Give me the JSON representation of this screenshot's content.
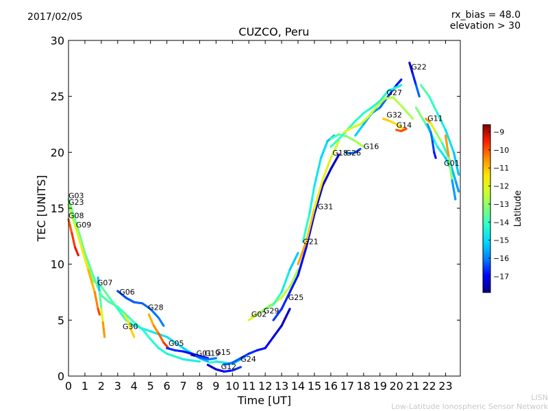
{
  "header": {
    "date": "2017/02/05",
    "title": "CUZCO, Peru",
    "rx_bias": "rx_bias = 48.0",
    "elevation": "elevation > 30"
  },
  "watermark": {
    "line1": "LISN",
    "line2": "Low-Latitude Ionospheric Sensor Network"
  },
  "chart_data": {
    "type": "scatter",
    "title": "CUZCO, Peru",
    "xlabel": "Time [UT]",
    "ylabel": "TEC [UNITS]",
    "xlim": [
      0,
      23.9
    ],
    "ylim": [
      0,
      30
    ],
    "xticks": [
      0,
      1,
      2,
      3,
      4,
      5,
      6,
      7,
      8,
      9,
      10,
      11,
      12,
      13,
      14,
      15,
      16,
      17,
      18,
      19,
      20,
      21,
      22,
      23
    ],
    "yticks": [
      0,
      5,
      10,
      15,
      20,
      25,
      30
    ],
    "colorbar": {
      "label": "Latitude",
      "range": [
        -17.9,
        -8.6
      ],
      "ticks": [
        -9,
        -10,
        -11,
        -12,
        -13,
        -14,
        -15,
        -16,
        -17
      ],
      "colormap": [
        "#00007f",
        "#0000ff",
        "#007fff",
        "#00d6ff",
        "#29ffce",
        "#7dff7a",
        "#ceff29",
        "#ffe500",
        "#ff8c00",
        "#ff2000",
        "#7f0000"
      ]
    },
    "series": [
      {
        "name": "G03",
        "lat_start": -13.5,
        "lat_end": -14.5,
        "points": [
          [
            0.0,
            15.8
          ],
          [
            0.5,
            13.5
          ],
          [
            1.0,
            11.0
          ],
          [
            1.5,
            9.0
          ],
          [
            2.0,
            7.2
          ],
          [
            2.5,
            6.6
          ],
          [
            3.0,
            6.2
          ],
          [
            3.5,
            5.5
          ],
          [
            4.0,
            4.8
          ],
          [
            4.5,
            4.2
          ],
          [
            5.0,
            3.3
          ],
          [
            5.5,
            2.5
          ],
          [
            6.0,
            2.0
          ],
          [
            7.0,
            1.5
          ],
          [
            8.0,
            1.3
          ]
        ]
      },
      {
        "name": "G23",
        "lat_start": -12.5,
        "lat_end": -15.5,
        "points": [
          [
            0.0,
            15.3
          ],
          [
            0.5,
            13.0
          ],
          [
            1.0,
            10.5
          ],
          [
            1.5,
            8.5
          ],
          [
            2.0,
            8.0
          ],
          [
            2.5,
            7.0
          ],
          [
            3.0,
            6.0
          ],
          [
            3.5,
            5.0
          ],
          [
            4.0,
            4.5
          ],
          [
            5.0,
            4.0
          ],
          [
            6.0,
            3.5
          ],
          [
            7.0,
            2.5
          ],
          [
            8.0,
            1.6
          ],
          [
            8.5,
            1.3
          ]
        ]
      },
      {
        "name": "G08",
        "lat_start": -10.2,
        "lat_end": -9.2,
        "points": [
          [
            0.0,
            14.0
          ],
          [
            0.2,
            12.8
          ],
          [
            0.4,
            11.5
          ],
          [
            0.6,
            10.8
          ]
        ]
      },
      {
        "name": "G09",
        "lat_start": -12.2,
        "lat_end": -9.6,
        "points": [
          [
            0.4,
            13.5
          ],
          [
            0.8,
            11.5
          ],
          [
            1.2,
            9.5
          ],
          [
            1.6,
            7.5
          ],
          [
            1.8,
            6.0
          ],
          [
            1.9,
            5.5
          ]
        ]
      },
      {
        "name": "G07",
        "lat_start": -16.0,
        "lat_end": -9.8,
        "points": [
          [
            1.8,
            8.8
          ],
          [
            1.9,
            7.5
          ],
          [
            2.0,
            6.0
          ],
          [
            2.1,
            4.8
          ],
          [
            2.2,
            3.5
          ]
        ]
      },
      {
        "name": "G06",
        "lat_start": -16.5,
        "lat_end": -16.0,
        "points": [
          [
            3.0,
            7.6
          ],
          [
            3.5,
            7.0
          ],
          [
            4.0,
            6.6
          ],
          [
            4.5,
            6.5
          ],
          [
            5.0,
            6.0
          ],
          [
            5.5,
            5.2
          ],
          [
            5.8,
            4.5
          ]
        ]
      },
      {
        "name": "G28",
        "lat_start": -11.0,
        "lat_end": -9.5,
        "points": [
          [
            4.9,
            5.5
          ],
          [
            5.2,
            4.5
          ],
          [
            5.5,
            3.8
          ],
          [
            5.8,
            3.0
          ],
          [
            6.1,
            2.5
          ]
        ]
      },
      {
        "name": "G30",
        "lat_start": -12.0,
        "lat_end": -11.0,
        "points": [
          [
            3.4,
            5.5
          ],
          [
            3.6,
            5.0
          ],
          [
            3.8,
            4.2
          ],
          [
            4.0,
            3.5
          ]
        ]
      },
      {
        "name": "G05",
        "lat_start": -16.5,
        "lat_end": -17.3,
        "points": [
          [
            6.0,
            2.5
          ],
          [
            6.5,
            2.3
          ],
          [
            7.0,
            2.2
          ],
          [
            7.5,
            2.0
          ],
          [
            8.0,
            1.8
          ],
          [
            8.5,
            1.6
          ]
        ]
      },
      {
        "name": "G01",
        "lat_start": -17.6,
        "lat_end": -17.0,
        "points": [
          [
            7.5,
            1.9
          ],
          [
            8.0,
            1.7
          ],
          [
            8.5,
            1.6
          ]
        ]
      },
      {
        "name": "G19",
        "lat_start": -16.5,
        "lat_end": -16.0,
        "points": [
          [
            7.8,
            1.8
          ],
          [
            8.2,
            1.6
          ],
          [
            8.6,
            1.5
          ],
          [
            9.0,
            1.6
          ]
        ]
      },
      {
        "name": "G15",
        "lat_start": -14.0,
        "lat_end": -16.0,
        "points": [
          [
            8.6,
            1.2
          ],
          [
            9.0,
            1.3
          ],
          [
            9.5,
            1.2
          ],
          [
            10.0,
            1.1
          ],
          [
            10.5,
            1.5
          ],
          [
            11.0,
            2.0
          ]
        ]
      },
      {
        "name": "G12",
        "lat_start": -17.5,
        "lat_end": -16.5,
        "points": [
          [
            8.5,
            1.0
          ],
          [
            9.0,
            0.6
          ],
          [
            9.5,
            0.4
          ],
          [
            10.0,
            0.5
          ],
          [
            10.5,
            0.8
          ]
        ]
      },
      {
        "name": "G24",
        "lat_start": -16.0,
        "lat_end": -17.5,
        "points": [
          [
            9.5,
            1.0
          ],
          [
            10.0,
            1.2
          ],
          [
            10.5,
            1.6
          ],
          [
            11.0,
            2.0
          ],
          [
            11.5,
            2.3
          ],
          [
            12.0,
            2.5
          ],
          [
            12.5,
            3.5
          ],
          [
            13.0,
            4.5
          ],
          [
            13.5,
            6.0
          ]
        ]
      },
      {
        "name": "G02",
        "lat_start": -10.6,
        "lat_end": -13.0,
        "points": [
          [
            11.2,
            5.3
          ],
          [
            11.6,
            5.6
          ],
          [
            12.0,
            6.0
          ],
          [
            12.5,
            6.5
          ],
          [
            13.0,
            7.0
          ],
          [
            13.5,
            8.0
          ],
          [
            14.0,
            9.5
          ]
        ]
      },
      {
        "name": "G29",
        "lat_start": -12.0,
        "lat_end": -15.5,
        "points": [
          [
            11.0,
            5.0
          ],
          [
            11.5,
            5.5
          ],
          [
            12.0,
            6.0
          ],
          [
            12.5,
            6.4
          ],
          [
            13.0,
            7.5
          ],
          [
            13.5,
            9.5
          ],
          [
            14.0,
            11.0
          ]
        ]
      },
      {
        "name": "G25",
        "lat_start": -16.5,
        "lat_end": -17.5,
        "points": [
          [
            12.5,
            5.0
          ],
          [
            13.0,
            6.0
          ],
          [
            13.5,
            7.5
          ],
          [
            14.0,
            9.0
          ],
          [
            14.5,
            11.5
          ],
          [
            15.0,
            14.5
          ],
          [
            15.5,
            17.0
          ],
          [
            16.0,
            18.5
          ],
          [
            16.5,
            19.8
          ]
        ]
      },
      {
        "name": "G21",
        "lat_start": -10.5,
        "lat_end": -12.5,
        "points": [
          [
            14.0,
            10.0
          ],
          [
            14.5,
            12.0
          ],
          [
            15.0,
            15.0
          ],
          [
            15.5,
            17.5
          ],
          [
            16.0,
            19.5
          ],
          [
            16.5,
            21.0
          ]
        ]
      },
      {
        "name": "G31",
        "lat_start": -14.0,
        "lat_end": -15.5,
        "points": [
          [
            14.3,
            12.0
          ],
          [
            14.7,
            14.5
          ],
          [
            15.0,
            17.0
          ],
          [
            15.4,
            19.5
          ],
          [
            15.8,
            21.0
          ],
          [
            16.2,
            21.5
          ]
        ]
      },
      {
        "name": "G18",
        "lat_start": -14.0,
        "lat_end": -12.5,
        "points": [
          [
            16.0,
            21.2
          ],
          [
            16.5,
            21.6
          ],
          [
            17.0,
            21.4
          ],
          [
            17.5,
            21.0
          ],
          [
            18.0,
            20.5
          ]
        ]
      },
      {
        "name": "G26",
        "lat_start": -16.0,
        "lat_end": -16.5,
        "points": [
          [
            16.9,
            20.0
          ],
          [
            17.2,
            19.9
          ],
          [
            17.5,
            20.0
          ],
          [
            17.8,
            20.3
          ]
        ]
      },
      {
        "name": "G16",
        "lat_start": -15.0,
        "lat_end": -17.0,
        "points": [
          [
            17.5,
            21.5
          ],
          [
            18.0,
            22.5
          ],
          [
            18.5,
            23.5
          ],
          [
            19.0,
            24.0
          ],
          [
            19.5,
            25.0
          ],
          [
            20.0,
            26.0
          ],
          [
            20.3,
            26.5
          ]
        ]
      },
      {
        "name": "G27",
        "lat_start": -14.0,
        "lat_end": -14.5,
        "points": [
          [
            16.0,
            20.5
          ],
          [
            16.5,
            21.2
          ],
          [
            17.0,
            22.0
          ],
          [
            17.5,
            22.8
          ],
          [
            18.0,
            23.5
          ],
          [
            18.5,
            24.0
          ],
          [
            19.0,
            24.6
          ],
          [
            19.5,
            25.5
          ],
          [
            20.0,
            25.8
          ],
          [
            20.3,
            26.0
          ]
        ]
      },
      {
        "name": "G32",
        "lat_start": -11.0,
        "lat_end": -11.5,
        "points": [
          [
            19.2,
            23.0
          ],
          [
            19.6,
            22.8
          ],
          [
            20.0,
            22.5
          ],
          [
            20.5,
            22.0
          ]
        ]
      },
      {
        "name": "G14",
        "lat_start": -10.0,
        "lat_end": -9.8,
        "points": [
          [
            20.0,
            22.0
          ],
          [
            20.3,
            21.9
          ],
          [
            20.6,
            22.1
          ]
        ]
      },
      {
        "name": "G22",
        "lat_start": -17.5,
        "lat_end": -16.0,
        "points": [
          [
            20.8,
            28.0
          ],
          [
            21.0,
            27.0
          ],
          [
            21.2,
            26.0
          ],
          [
            21.4,
            25.0
          ]
        ]
      },
      {
        "name": "G11",
        "lat_start": -13.5,
        "lat_end": -15.5,
        "points": [
          [
            21.5,
            26.0
          ],
          [
            22.0,
            25.0
          ],
          [
            22.5,
            23.5
          ],
          [
            23.0,
            22.0
          ],
          [
            23.5,
            20.0
          ],
          [
            23.8,
            18.0
          ]
        ]
      },
      {
        "name": "G01",
        "lat_start": -13.0,
        "lat_end": -16.0,
        "points": [
          [
            21.2,
            24.0
          ],
          [
            21.6,
            23.0
          ],
          [
            22.0,
            22.0
          ],
          [
            22.5,
            20.5
          ],
          [
            23.0,
            19.5
          ],
          [
            23.5,
            18.0
          ],
          [
            23.8,
            16.5
          ]
        ]
      },
      {
        "name": "",
        "lat_start": -12.0,
        "lat_end": -12.8,
        "points": [
          [
            16.8,
            21.8
          ],
          [
            17.3,
            22.2
          ],
          [
            17.8,
            22.5
          ],
          [
            18.3,
            23.2
          ],
          [
            18.8,
            24.1
          ],
          [
            19.3,
            24.8
          ],
          [
            19.8,
            24.9
          ],
          [
            20.4,
            24.0
          ],
          [
            21.0,
            23.0
          ]
        ]
      },
      {
        "name": "",
        "lat_start": -10.0,
        "lat_end": -16.0,
        "points": [
          [
            21.8,
            23.0
          ],
          [
            22.1,
            22.6
          ],
          [
            22.4,
            21.8
          ],
          [
            22.8,
            20.8
          ],
          [
            23.2,
            19.5
          ],
          [
            23.6,
            17.5
          ]
        ]
      },
      {
        "name": "",
        "lat_start": -15.6,
        "lat_end": -17.0,
        "points": [
          [
            21.9,
            22.5
          ],
          [
            22.1,
            21.8
          ],
          [
            22.2,
            21.0
          ],
          [
            22.3,
            20.0
          ],
          [
            22.4,
            19.5
          ]
        ]
      },
      {
        "name": "",
        "lat_start": -9.3,
        "lat_end": -17.0,
        "points": [
          [
            23.0,
            21.5
          ],
          [
            23.2,
            19.5
          ],
          [
            23.4,
            17.5
          ],
          [
            23.6,
            15.8
          ]
        ]
      }
    ],
    "labels": [
      {
        "text": "G03",
        "x": 0.0,
        "y": 15.9
      },
      {
        "text": "G23",
        "x": 0.0,
        "y": 15.3
      },
      {
        "text": "G08",
        "x": 0.0,
        "y": 14.1
      },
      {
        "text": "G09",
        "x": 0.45,
        "y": 13.3
      },
      {
        "text": "G07",
        "x": 1.75,
        "y": 8.1
      },
      {
        "text": "G06",
        "x": 3.1,
        "y": 7.3
      },
      {
        "text": "G28",
        "x": 4.85,
        "y": 5.9
      },
      {
        "text": "G30",
        "x": 3.3,
        "y": 4.2
      },
      {
        "text": "G05",
        "x": 6.1,
        "y": 2.7
      },
      {
        "text": "G01",
        "x": 7.8,
        "y": 1.8
      },
      {
        "text": "G19",
        "x": 8.3,
        "y": 1.8
      },
      {
        "text": "G15",
        "x": 8.95,
        "y": 1.9
      },
      {
        "text": "G12",
        "x": 9.3,
        "y": 0.6
      },
      {
        "text": "G24",
        "x": 10.5,
        "y": 1.3
      },
      {
        "text": "G02",
        "x": 11.15,
        "y": 5.3
      },
      {
        "text": "G29",
        "x": 11.9,
        "y": 5.6
      },
      {
        "text": "G25",
        "x": 13.4,
        "y": 6.8
      },
      {
        "text": "G21",
        "x": 14.3,
        "y": 11.8
      },
      {
        "text": "G31",
        "x": 15.2,
        "y": 14.9
      },
      {
        "text": "G18",
        "x": 16.1,
        "y": 19.7
      },
      {
        "text": "G26",
        "x": 16.9,
        "y": 19.7
      },
      {
        "text": "G16",
        "x": 18.0,
        "y": 20.3
      },
      {
        "text": "G27",
        "x": 19.4,
        "y": 25.1
      },
      {
        "text": "G32",
        "x": 19.4,
        "y": 23.1
      },
      {
        "text": "G14",
        "x": 20.0,
        "y": 22.2
      },
      {
        "text": "G22",
        "x": 20.9,
        "y": 27.4
      },
      {
        "text": "G11",
        "x": 21.9,
        "y": 22.8
      },
      {
        "text": "G01",
        "x": 22.9,
        "y": 18.8
      }
    ]
  }
}
